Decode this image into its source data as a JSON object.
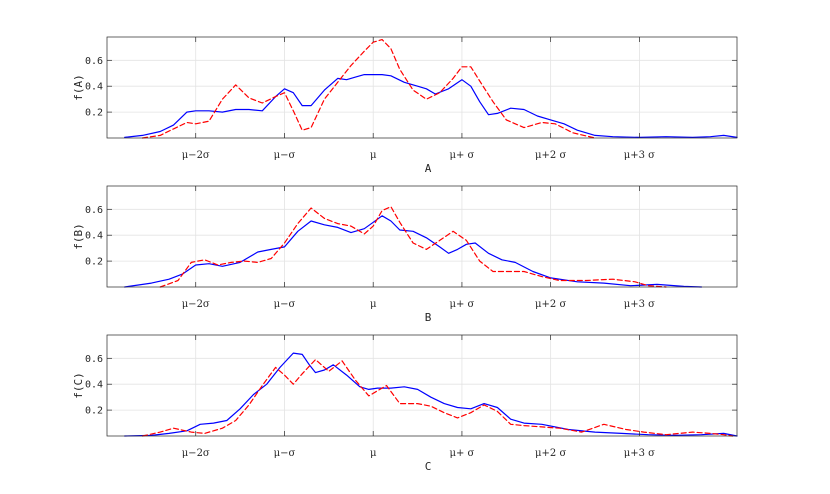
{
  "chart_data": [
    {
      "type": "line",
      "xlabel": "A",
      "ylabel": "f(A)",
      "xlim": [
        -3.0,
        4.1
      ],
      "ylim": [
        0,
        0.78
      ],
      "xticks": [
        -2,
        -1,
        0,
        1,
        2,
        3
      ],
      "xtick_labels": [
        "μ−2σ",
        "μ−σ",
        "μ",
        "μ+ σ",
        "μ+2 σ",
        "μ+3 σ"
      ],
      "yticks": [
        0.2,
        0.4,
        0.6
      ],
      "ytick_labels": [
        "0.2",
        "0.4",
        "0.6"
      ],
      "grid": true,
      "series": [
        {
          "color": "#0000ff",
          "style": "solid",
          "x": [
            -2.8,
            -2.6,
            -2.4,
            -2.25,
            -2.1,
            -2.0,
            -1.85,
            -1.7,
            -1.55,
            -1.4,
            -1.25,
            -1.1,
            -1.0,
            -0.9,
            -0.8,
            -0.7,
            -0.55,
            -0.4,
            -0.3,
            -0.2,
            -0.1,
            0.0,
            0.1,
            0.2,
            0.35,
            0.5,
            0.6,
            0.7,
            0.85,
            1.0,
            1.1,
            1.2,
            1.3,
            1.4,
            1.55,
            1.7,
            1.85,
            2.0,
            2.15,
            2.3,
            2.5,
            2.7,
            3.0,
            3.3,
            3.6,
            3.8,
            3.95,
            4.1
          ],
          "y": [
            0.005,
            0.02,
            0.05,
            0.1,
            0.2,
            0.21,
            0.21,
            0.2,
            0.22,
            0.22,
            0.21,
            0.32,
            0.38,
            0.35,
            0.25,
            0.25,
            0.37,
            0.46,
            0.45,
            0.47,
            0.49,
            0.49,
            0.49,
            0.48,
            0.43,
            0.4,
            0.38,
            0.34,
            0.38,
            0.45,
            0.4,
            0.28,
            0.18,
            0.19,
            0.23,
            0.22,
            0.17,
            0.14,
            0.11,
            0.06,
            0.02,
            0.01,
            0.005,
            0.01,
            0.005,
            0.01,
            0.02,
            0.005
          ]
        },
        {
          "color": "#ff0000",
          "style": "dashed",
          "x": [
            -2.6,
            -2.4,
            -2.25,
            -2.1,
            -2.0,
            -1.85,
            -1.7,
            -1.55,
            -1.4,
            -1.25,
            -1.1,
            -1.0,
            -0.9,
            -0.8,
            -0.7,
            -0.55,
            -0.4,
            -0.25,
            -0.1,
            0.0,
            0.1,
            0.2,
            0.3,
            0.45,
            0.6,
            0.75,
            0.9,
            1.0,
            1.1,
            1.2,
            1.35,
            1.5,
            1.7,
            1.9,
            2.05,
            2.25,
            2.5
          ],
          "y": [
            0.0,
            0.02,
            0.07,
            0.12,
            0.11,
            0.13,
            0.3,
            0.41,
            0.31,
            0.27,
            0.32,
            0.35,
            0.21,
            0.06,
            0.08,
            0.3,
            0.43,
            0.56,
            0.67,
            0.74,
            0.76,
            0.69,
            0.53,
            0.37,
            0.3,
            0.35,
            0.46,
            0.55,
            0.55,
            0.44,
            0.28,
            0.14,
            0.08,
            0.12,
            0.11,
            0.04,
            0.0
          ]
        }
      ]
    },
    {
      "type": "line",
      "xlabel": "B",
      "ylabel": "f(B)",
      "xlim": [
        -3.0,
        4.1
      ],
      "ylim": [
        0,
        0.78
      ],
      "xticks": [
        -2,
        -1,
        0,
        1,
        2,
        3
      ],
      "xtick_labels": [
        "μ−2σ",
        "μ−σ",
        "μ",
        "μ+ σ",
        "μ+2 σ",
        "μ+3 σ"
      ],
      "yticks": [
        0.2,
        0.4,
        0.6
      ],
      "ytick_labels": [
        "0.2",
        "0.4",
        "0.6"
      ],
      "grid": true,
      "series": [
        {
          "color": "#0000ff",
          "style": "solid",
          "x": [
            -2.8,
            -2.5,
            -2.3,
            -2.15,
            -2.0,
            -1.85,
            -1.7,
            -1.5,
            -1.3,
            -1.15,
            -1.0,
            -0.85,
            -0.7,
            -0.55,
            -0.4,
            -0.25,
            -0.1,
            0.0,
            0.1,
            0.2,
            0.3,
            0.45,
            0.6,
            0.75,
            0.85,
            0.95,
            1.05,
            1.15,
            1.3,
            1.45,
            1.6,
            1.8,
            2.0,
            2.3,
            2.6,
            2.9,
            3.2,
            3.5,
            3.7
          ],
          "y": [
            0.0,
            0.03,
            0.06,
            0.1,
            0.17,
            0.18,
            0.16,
            0.19,
            0.27,
            0.29,
            0.31,
            0.43,
            0.51,
            0.48,
            0.46,
            0.42,
            0.45,
            0.5,
            0.55,
            0.51,
            0.44,
            0.43,
            0.38,
            0.31,
            0.26,
            0.29,
            0.33,
            0.34,
            0.26,
            0.21,
            0.19,
            0.12,
            0.07,
            0.04,
            0.03,
            0.01,
            0.02,
            0.005,
            0.0
          ]
        },
        {
          "color": "#ff0000",
          "style": "dashed",
          "x": [
            -2.4,
            -2.2,
            -2.05,
            -1.9,
            -1.75,
            -1.6,
            -1.45,
            -1.3,
            -1.15,
            -1.0,
            -0.85,
            -0.7,
            -0.55,
            -0.4,
            -0.25,
            -0.1,
            0.0,
            0.1,
            0.2,
            0.3,
            0.45,
            0.6,
            0.75,
            0.9,
            1.05,
            1.2,
            1.35,
            1.5,
            1.7,
            1.9,
            2.1,
            2.4,
            2.7,
            2.95,
            3.1,
            3.3
          ],
          "y": [
            0.0,
            0.05,
            0.19,
            0.21,
            0.17,
            0.19,
            0.2,
            0.19,
            0.22,
            0.34,
            0.49,
            0.61,
            0.53,
            0.49,
            0.47,
            0.41,
            0.47,
            0.59,
            0.62,
            0.5,
            0.34,
            0.29,
            0.36,
            0.43,
            0.36,
            0.2,
            0.12,
            0.12,
            0.12,
            0.08,
            0.05,
            0.05,
            0.06,
            0.04,
            0.01,
            0.0
          ]
        }
      ]
    },
    {
      "type": "line",
      "xlabel": "C",
      "ylabel": "f(C)",
      "xlim": [
        -3.0,
        4.1
      ],
      "ylim": [
        0,
        0.78
      ],
      "xticks": [
        -2,
        -1,
        0,
        1,
        2,
        3
      ],
      "xtick_labels": [
        "μ−2σ",
        "μ−σ",
        "μ",
        "μ+ σ",
        "μ+2 σ",
        "μ+3 σ"
      ],
      "yticks": [
        0.2,
        0.4,
        0.6
      ],
      "ytick_labels": [
        "0.2",
        "0.4",
        "0.6"
      ],
      "grid": true,
      "series": [
        {
          "color": "#0000ff",
          "style": "solid",
          "x": [
            -2.8,
            -2.5,
            -2.3,
            -2.1,
            -1.95,
            -1.8,
            -1.65,
            -1.5,
            -1.35,
            -1.2,
            -1.05,
            -0.9,
            -0.8,
            -0.72,
            -0.65,
            -0.55,
            -0.45,
            -0.3,
            -0.15,
            -0.05,
            0.05,
            0.2,
            0.35,
            0.5,
            0.65,
            0.8,
            0.95,
            1.1,
            1.25,
            1.4,
            1.55,
            1.7,
            1.9,
            2.2,
            2.5,
            2.8,
            3.1,
            3.4,
            3.7,
            3.95,
            4.1
          ],
          "y": [
            0.0,
            0.005,
            0.02,
            0.04,
            0.09,
            0.1,
            0.12,
            0.21,
            0.32,
            0.4,
            0.53,
            0.64,
            0.63,
            0.55,
            0.49,
            0.51,
            0.55,
            0.47,
            0.38,
            0.36,
            0.37,
            0.37,
            0.38,
            0.36,
            0.3,
            0.25,
            0.22,
            0.21,
            0.25,
            0.22,
            0.13,
            0.1,
            0.09,
            0.05,
            0.03,
            0.02,
            0.01,
            0.005,
            0.01,
            0.02,
            0.0
          ]
        },
        {
          "color": "#ff0000",
          "style": "dashed",
          "x": [
            -2.6,
            -2.4,
            -2.25,
            -2.05,
            -1.9,
            -1.7,
            -1.55,
            -1.4,
            -1.25,
            -1.1,
            -1.0,
            -0.9,
            -0.8,
            -0.65,
            -0.5,
            -0.35,
            -0.2,
            -0.05,
            0.05,
            0.15,
            0.3,
            0.5,
            0.65,
            0.8,
            0.95,
            1.1,
            1.25,
            1.4,
            1.55,
            1.7,
            1.9,
            2.1,
            2.35,
            2.6,
            2.85,
            3.05,
            3.3,
            3.6,
            3.8,
            3.95,
            4.05
          ],
          "y": [
            0.0,
            0.03,
            0.06,
            0.03,
            0.02,
            0.06,
            0.12,
            0.24,
            0.39,
            0.53,
            0.47,
            0.4,
            0.48,
            0.59,
            0.5,
            0.58,
            0.43,
            0.31,
            0.35,
            0.39,
            0.25,
            0.25,
            0.23,
            0.18,
            0.14,
            0.18,
            0.24,
            0.19,
            0.09,
            0.08,
            0.07,
            0.06,
            0.03,
            0.09,
            0.05,
            0.03,
            0.01,
            0.03,
            0.02,
            0.01,
            0.0
          ]
        }
      ]
    }
  ]
}
